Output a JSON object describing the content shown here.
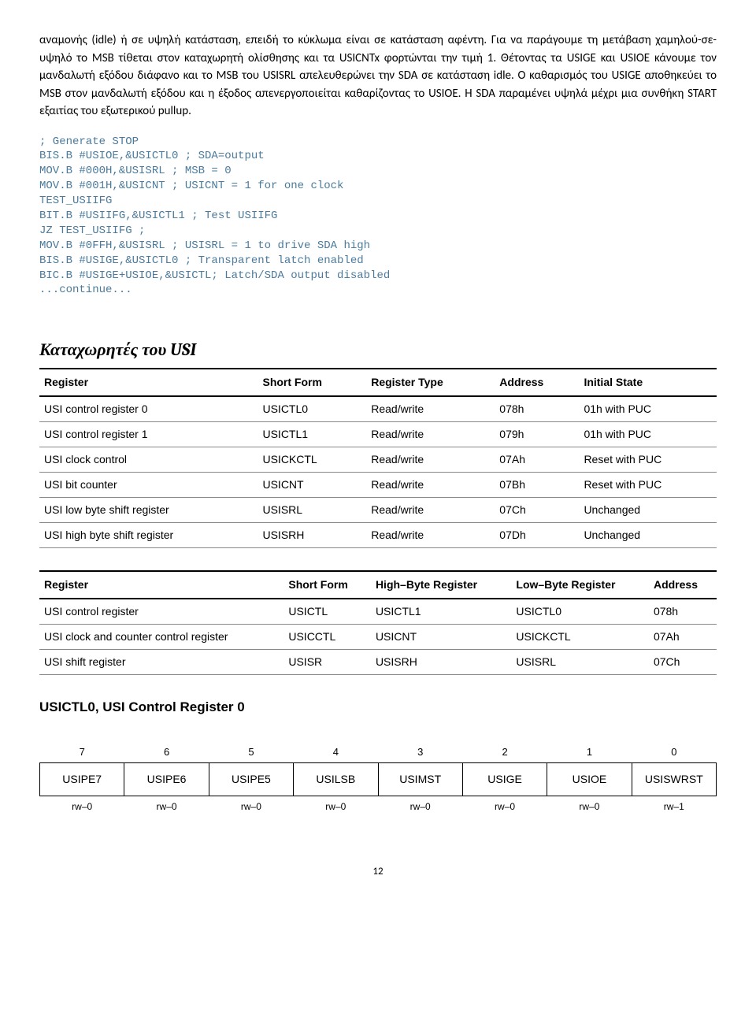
{
  "paragraph": "αναμονής (idle) ή σε υψηλή κατάσταση, επειδή το κύκλωμα είναι σε κατάσταση αφέντη. Για να παράγουμε τη μετάβαση χαμηλού-σε-υψηλό το MSB τίθεται στον καταχωρητή ολίσθησης και τα USICNTx φορτώνται την τιμή 1. Θέτοντας τα USIGE και USIOE κάνουμε τον μανδαλωτή εξόδου διάφανο και το MSB του USISRL απελευθερώνει την SDA σε κατάσταση idle. Ο καθαρισμός του USIGE αποθηκεύει το MSB στον μανδαλωτή εξόδου και η έξοδος απενεργοποιείται καθαρίζοντας το USIOE. Η SDA παραμένει υψηλά μέχρι μια συνθήκη START εξαιτίας του εξωτερικού pullup.",
  "code": "; Generate STOP\nBIS.B #USIOE,&USICTL0 ; SDA=output\nMOV.B #000H,&USISRL ; MSB = 0\nMOV.B #001H,&USICNT ; USICNT = 1 for one clock\nTEST_USIIFG\nBIT.B #USIIFG,&USICTL1 ; Test USIIFG\nJZ TEST_USIIFG ;\nMOV.B #0FFH,&USISRL ; USISRL = 1 to drive SDA high\nBIS.B #USIGE,&USICTL0 ; Transparent latch enabled\nBIC.B #USIGE+USIOE,&USICTL; Latch/SDA output disabled\n...continue...",
  "section_title": "Καταχωρητές του USI",
  "table1": {
    "headers": [
      "Register",
      "Short Form",
      "Register Type",
      "Address",
      "Initial State"
    ],
    "rows": [
      [
        "USI control register 0",
        "USICTL0",
        "Read/write",
        "078h",
        "01h with PUC"
      ],
      [
        "USI control register 1",
        "USICTL1",
        "Read/write",
        "079h",
        "01h with PUC"
      ],
      [
        "USI clock control",
        "USICKCTL",
        "Read/write",
        "07Ah",
        "Reset with PUC"
      ],
      [
        "USI bit counter",
        "USICNT",
        "Read/write",
        "07Bh",
        "Reset with PUC"
      ],
      [
        "USI low byte shift register",
        "USISRL",
        "Read/write",
        "07Ch",
        "Unchanged"
      ],
      [
        "USI high byte shift register",
        "USISRH",
        "Read/write",
        "07Dh",
        "Unchanged"
      ]
    ]
  },
  "table2": {
    "headers": [
      "Register",
      "Short Form",
      "High–Byte Register",
      "Low–Byte Register",
      "Address"
    ],
    "rows": [
      [
        "USI control register",
        "USICTL",
        "USICTL1",
        "USICTL0",
        "078h"
      ],
      [
        "USI clock and counter control register",
        "USICCTL",
        "USICNT",
        "USICKCTL",
        "07Ah"
      ],
      [
        "USI shift register",
        "USISR",
        "USISRH",
        "USISRL",
        "07Ch"
      ]
    ]
  },
  "reg_title": "USICTL0, USI Control Register 0",
  "bitfield": {
    "bits": [
      "7",
      "6",
      "5",
      "4",
      "3",
      "2",
      "1",
      "0"
    ],
    "names": [
      "USIPE7",
      "USIPE6",
      "USIPE5",
      "USILSB",
      "USIMST",
      "USIGE",
      "USIOE",
      "USISWRST"
    ],
    "rw": [
      "rw–0",
      "rw–0",
      "rw–0",
      "rw–0",
      "rw–0",
      "rw–0",
      "rw–0",
      "rw–1"
    ]
  },
  "pagenum": "12"
}
